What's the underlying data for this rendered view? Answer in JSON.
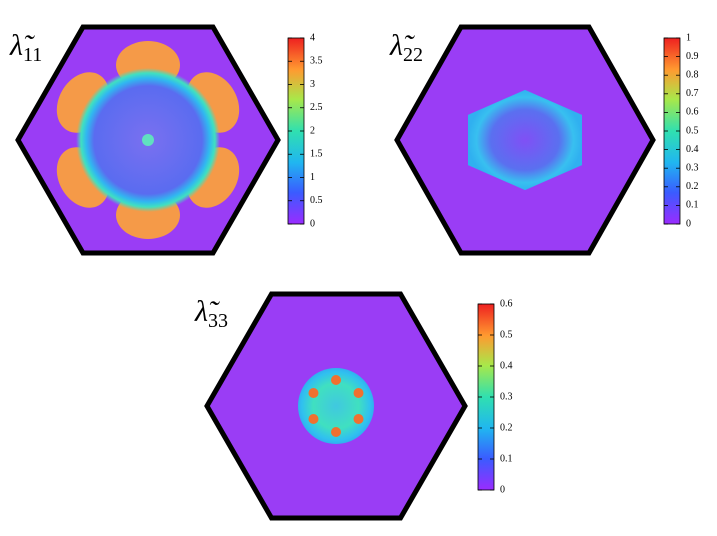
{
  "chart_data": [
    {
      "type": "heatmap",
      "symbol": "λ̃",
      "subscript": "11",
      "colorbar": {
        "lim": [
          0,
          4
        ],
        "ticks": [
          0,
          0.5,
          1,
          1.5,
          2,
          2.5,
          3,
          3.5,
          4
        ]
      }
    },
    {
      "type": "heatmap",
      "symbol": "λ̃",
      "subscript": "22",
      "colorbar": {
        "lim": [
          0,
          1
        ],
        "ticks": [
          0,
          0.1,
          0.2,
          0.3,
          0.4,
          0.5,
          0.6,
          0.7,
          0.8,
          0.9,
          1
        ]
      }
    },
    {
      "type": "heatmap",
      "symbol": "λ̃",
      "subscript": "33",
      "colorbar": {
        "lim": [
          0,
          0.6
        ],
        "ticks": [
          0,
          0.1,
          0.2,
          0.3,
          0.4,
          0.5,
          0.6
        ]
      }
    }
  ]
}
